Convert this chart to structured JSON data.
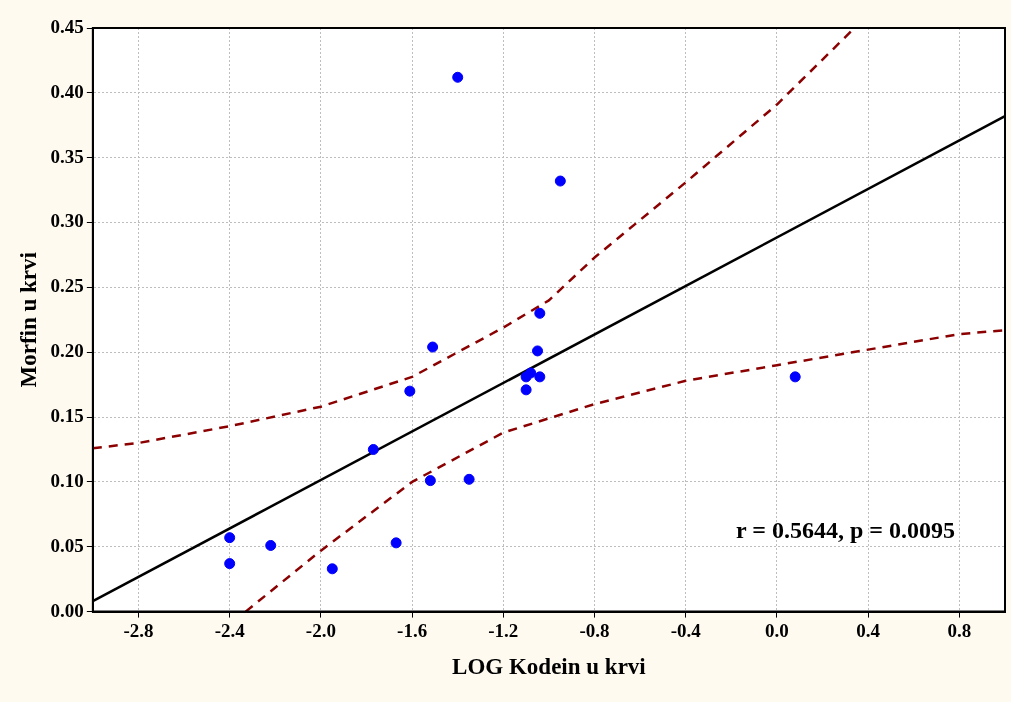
{
  "chart_data": {
    "type": "scatter",
    "xlabel": "LOG Kodein u krvi",
    "ylabel": "Morfin u krvi",
    "xlim": [
      -3.0,
      1.0
    ],
    "xticks": [
      -2.8,
      -2.4,
      {
        "value": -2,
        "label": "-2.0"
      },
      -1.6,
      -1.2,
      -0.8,
      -0.4,
      {
        "value": 0,
        "label": "0.0"
      },
      0.4,
      0.8
    ],
    "ylim": [
      0,
      0.45
    ],
    "yticks": [
      {
        "value": 0,
        "label": "0.00"
      },
      {
        "value": 0.05,
        "label": "0.05"
      },
      {
        "value": 0.1,
        "label": "0.10"
      },
      {
        "value": 0.15,
        "label": "0.15"
      },
      {
        "value": 0.2,
        "label": "0.20"
      },
      {
        "value": 0.25,
        "label": "0.25"
      },
      {
        "value": 0.3,
        "label": "0.30"
      },
      {
        "value": 0.35,
        "label": "0.35"
      },
      {
        "value": 0.4,
        "label": "0.40"
      },
      {
        "value": 0.45,
        "label": "0.45"
      }
    ],
    "grid": true,
    "marker": "circle",
    "annotations": [
      "r = 0.5644, p = 0.0095"
    ],
    "series": [
      {
        "color": "#0000ff",
        "x": [
          -2.4,
          -2.4,
          -2.22,
          -1.95,
          -1.77,
          -1.67,
          -1.61,
          -1.51,
          -1.52,
          -1.35,
          -1.4,
          -0.95,
          -1.04,
          -1.05,
          -1.1,
          -1.08,
          -1.04,
          -1.1,
          0.08
        ],
        "values": [
          0.057,
          0.037,
          0.051,
          0.033,
          0.125,
          0.053,
          0.17,
          0.204,
          0.101,
          0.102,
          0.412,
          0.332,
          0.23,
          0.201,
          0.181,
          0.184,
          0.181,
          0.171,
          0.181
        ]
      },
      {
        "type": "line",
        "color": "#000000",
        "marker": "none",
        "line_style": "solid",
        "x": [
          -3.0,
          1.0
        ],
        "values": [
          0.008,
          0.382
        ]
      },
      {
        "type": "line",
        "color": "#8b0000",
        "marker": "none",
        "line_style": "dashed",
        "x": [
          -3.0,
          -2.8,
          -2.4,
          -2.0,
          -1.6,
          -1.2,
          -1.0,
          -0.8,
          -0.4,
          0.0,
          0.34
        ],
        "values": [
          0.126,
          0.13,
          0.143,
          0.158,
          0.181,
          0.219,
          0.24,
          0.273,
          0.331,
          0.391,
          0.45
        ]
      },
      {
        "type": "line",
        "color": "#8b0000",
        "marker": "none",
        "line_style": "dashed",
        "x": [
          -2.33,
          -2.0,
          -1.6,
          -1.2,
          -0.8,
          -0.4,
          0.0,
          0.4,
          0.8,
          1.0
        ],
        "values": [
          0,
          0.047,
          0.1,
          0.138,
          0.16,
          0.178,
          0.19,
          0.202,
          0.214,
          0.217
        ]
      }
    ]
  }
}
